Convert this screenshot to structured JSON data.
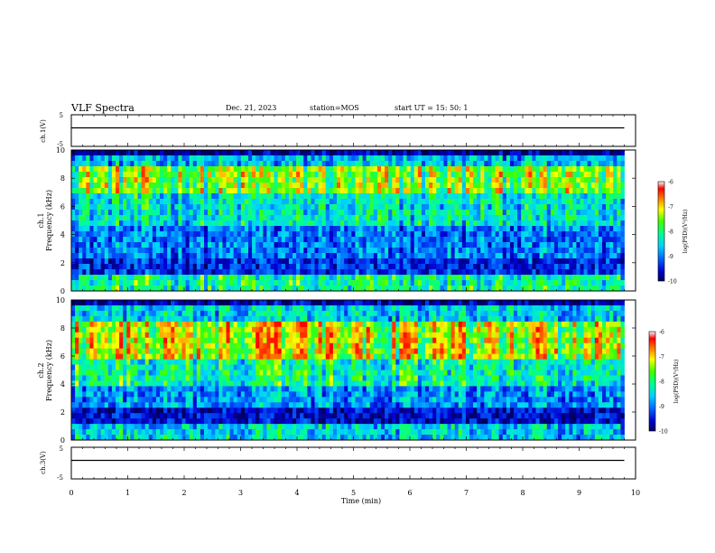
{
  "header": {
    "title": "VLF Spectra",
    "date": "Dec. 21, 2023",
    "station": "station=MOS",
    "start": "start  UT  =   15: 50: 1"
  },
  "chart_data": [
    {
      "type": "line",
      "name": "ch1-waveform",
      "ylabel": "ch.1(V)",
      "ylim": [
        -5,
        5
      ],
      "yticks": [
        "5",
        "-5"
      ],
      "xlim": [
        0,
        10
      ],
      "x": [
        0,
        9.8
      ],
      "y": [
        0,
        0
      ]
    },
    {
      "type": "heatmap",
      "name": "ch1-spectrogram",
      "ylabel_line1": "ch.1",
      "ylabel_line2": "Frequency  (kHz)",
      "ylim": [
        0,
        10
      ],
      "yticks": [
        "0",
        "2",
        "4",
        "6",
        "8",
        "10"
      ],
      "xlim": [
        0,
        10
      ],
      "data_extent_min": 9.8,
      "colorbar": {
        "label": "log(PSD)(V²/Hz)",
        "range": [
          -10,
          -6
        ],
        "ticks": [
          "-6",
          "-7",
          "-8",
          "-9",
          "-10"
        ]
      }
    },
    {
      "type": "heatmap",
      "name": "ch2-spectrogram",
      "ylabel_line1": "ch.2",
      "ylabel_line2": "Frequency  (kHz)",
      "ylim": [
        0,
        10
      ],
      "yticks": [
        "0",
        "2",
        "4",
        "6",
        "8",
        "10"
      ],
      "xlim": [
        0,
        10
      ],
      "data_extent_min": 9.8,
      "colorbar": {
        "label": "log(PSD)(V²/Hz)",
        "range": [
          -10,
          -6
        ],
        "ticks": [
          "-6",
          "-7",
          "-8",
          "-9",
          "-10"
        ]
      }
    },
    {
      "type": "line",
      "name": "ch3-waveform",
      "ylabel": "ch.3(V)",
      "ylim": [
        -5,
        5
      ],
      "yticks": [
        "5",
        "-5"
      ],
      "xlim": [
        0,
        10
      ],
      "x": [
        0,
        9.8
      ],
      "y": [
        0,
        0
      ]
    }
  ],
  "xaxis": {
    "label": "Time  (min)",
    "ticks": [
      "0",
      "1",
      "2",
      "3",
      "4",
      "5",
      "6",
      "7",
      "8",
      "9",
      "10"
    ]
  }
}
